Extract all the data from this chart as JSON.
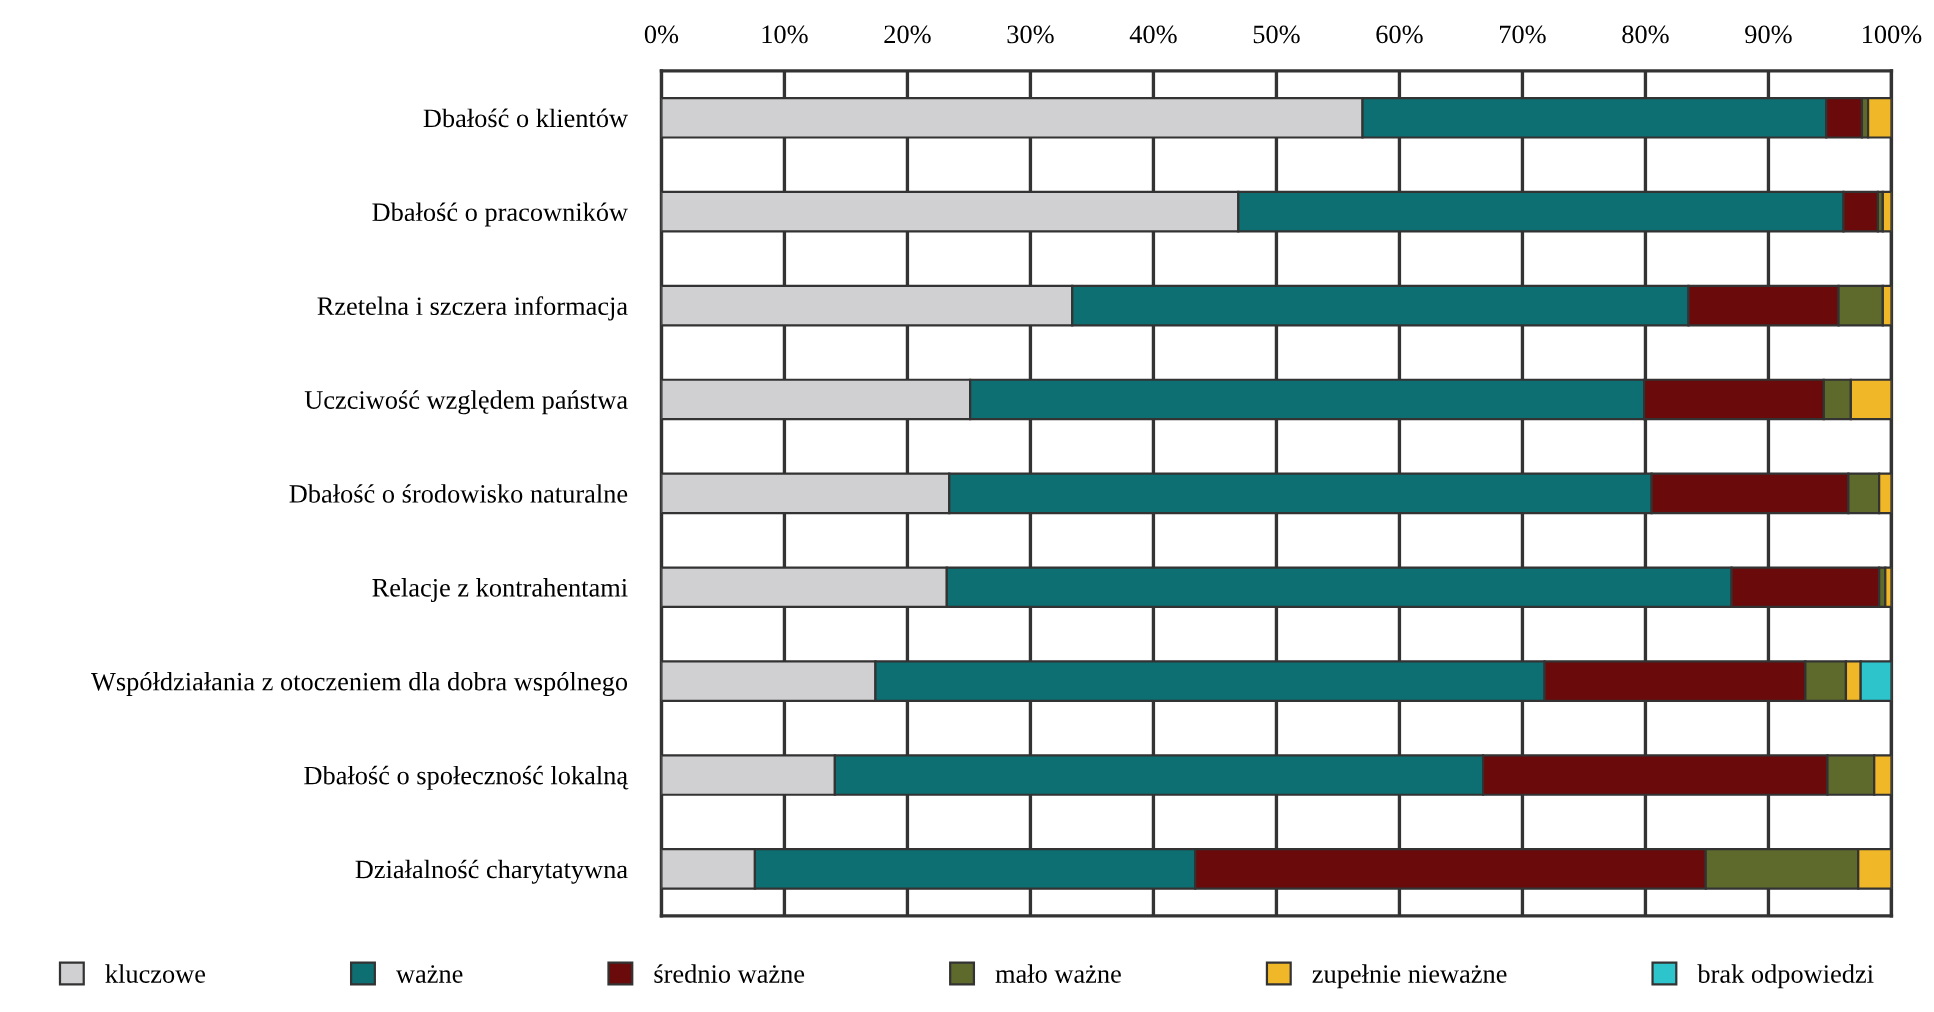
{
  "chart_data": {
    "type": "bar",
    "orientation": "horizontal",
    "stacked": true,
    "categories": [
      "Dbałość o klientów",
      "Dbałość o pracowników",
      "Rzetelna i szczera informacja",
      "Uczciwość względem państwa",
      "Dbałość o środowisko naturalne",
      "Relacje z kontrahentami",
      "Współdziałania z otoczeniem dla dobra wspólnego",
      "Dbałość o społeczność lokalną",
      "Działalność charytatywna"
    ],
    "series": [
      {
        "name": "kluczowe",
        "color": "#d0d0d2",
        "values": [
          57.0,
          46.9,
          33.4,
          25.1,
          23.4,
          23.2,
          17.4,
          14.1,
          7.6
        ]
      },
      {
        "name": "ważne",
        "color": "#0e6f72",
        "values": [
          37.7,
          49.2,
          50.1,
          54.8,
          57.1,
          63.8,
          54.4,
          52.7,
          35.8
        ]
      },
      {
        "name": "średnio ważne",
        "color": "#6a0a0a",
        "values": [
          2.9,
          2.8,
          12.2,
          14.6,
          16.0,
          12.0,
          21.2,
          28.0,
          41.5
        ]
      },
      {
        "name": "mało ważne",
        "color": "#5e6a2c",
        "values": [
          0.5,
          0.4,
          3.6,
          2.2,
          2.5,
          0.5,
          3.3,
          3.8,
          12.4
        ]
      },
      {
        "name": "zupełnie nieważne",
        "color": "#f0b828",
        "values": [
          1.9,
          0.7,
          0.7,
          3.3,
          1.0,
          0.5,
          1.2,
          1.4,
          2.7
        ]
      },
      {
        "name": "brak odpowiedzi",
        "color": "#2ec4cc",
        "values": [
          0,
          0,
          0,
          0,
          0,
          0,
          2.5,
          0,
          0
        ]
      }
    ],
    "xlim": [
      0,
      100
    ],
    "xticks": [
      {
        "value": 0,
        "label": "0%"
      },
      {
        "value": 10,
        "label": "10%"
      },
      {
        "value": 20,
        "label": "20%"
      },
      {
        "value": 30,
        "label": "30%"
      },
      {
        "value": 40,
        "label": "40%"
      },
      {
        "value": 50,
        "label": "50%"
      },
      {
        "value": 60,
        "label": "60%"
      },
      {
        "value": 70,
        "label": "70%"
      },
      {
        "value": 80,
        "label": "80%"
      },
      {
        "value": 90,
        "label": "90%"
      },
      {
        "value": 100,
        "label": "100%"
      }
    ],
    "grid": "x",
    "legend": "bottom"
  }
}
